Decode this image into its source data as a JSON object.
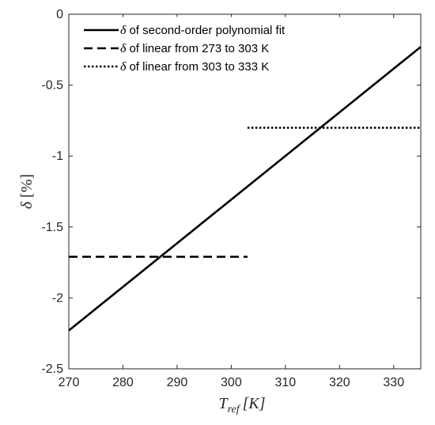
{
  "chart_data": {
    "type": "line",
    "xlim": [
      270,
      335
    ],
    "ylim": [
      -2.5,
      0
    ],
    "xticks": [
      270,
      280,
      290,
      300,
      310,
      320,
      330
    ],
    "xtick_labels": [
      "270",
      "280",
      "290",
      "300",
      "310",
      "320",
      "330"
    ],
    "yticks": [
      0,
      -0.5,
      -1,
      -1.5,
      -2,
      -2.5
    ],
    "ytick_labels": [
      "0",
      "-0.5",
      "-1",
      "-1.5",
      "-2",
      "-2.5"
    ],
    "xlabel": {
      "main": "T",
      "sub": "ref",
      "unit": "[K]"
    },
    "ylabel": {
      "symbol": "δ",
      "unit": "[%]"
    },
    "grid": false,
    "legend_position": "top-left",
    "series": [
      {
        "name": "of second-order polynomial fit",
        "symbol": "δ",
        "style": "solid",
        "color": "#000000",
        "x": [
          270,
          335
        ],
        "y": [
          -2.23,
          -0.23
        ]
      },
      {
        "name": "of linear from 273 to 303 K",
        "symbol": "δ",
        "style": "dashed",
        "color": "#000000",
        "x": [
          270,
          303
        ],
        "y": [
          -1.71,
          -1.71
        ]
      },
      {
        "name": "of linear from 303 to 333 K",
        "symbol": "δ",
        "style": "dotted",
        "color": "#000000",
        "x": [
          303,
          335
        ],
        "y": [
          -0.8,
          -0.8
        ]
      }
    ]
  }
}
